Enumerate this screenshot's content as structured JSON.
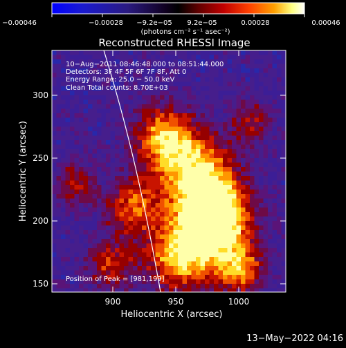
{
  "colorbar": {
    "tick_labels": [
      "−0.00046",
      "−0.00028",
      "−9.2e−05",
      "9.2e−05",
      "0.00028",
      "0.00046"
    ],
    "unit_label": "(photons cm⁻² s⁻¹ asec⁻²)",
    "colors": [
      "#0000ff",
      "#2020a0",
      "#200040",
      "#000000",
      "#500000",
      "#b00000",
      "#ff3300",
      "#ff9900",
      "#ffff60",
      "#ffffff"
    ]
  },
  "title": "Reconstructed RHESSI Image",
  "info": {
    "line1": "10−Aug−2011 08:46:48.000 to 08:51:44.000",
    "line2": "Detectors: 3F 4F 5F 6F 7F 8F, Att 0",
    "line3": "Energy Range: 25.0 − 50.0 keV",
    "line4": "Clean     Total counts: 8.70E+03"
  },
  "peak_label": "Position of Peak = [981,199]",
  "axes": {
    "xlabel": "Heliocentric X (arcsec)",
    "ylabel": "Heliocentric Y (arcsec)",
    "xticks": [
      "900",
      "950",
      "1000"
    ],
    "yticks": [
      "150",
      "200",
      "250",
      "300"
    ]
  },
  "timestamp": "13−May−2022 04:16"
}
